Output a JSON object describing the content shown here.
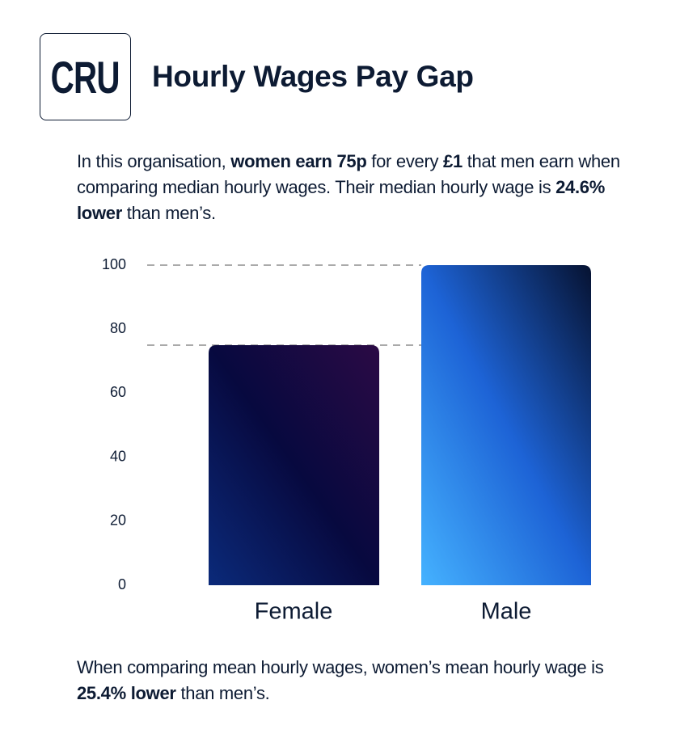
{
  "logo": "CRU",
  "title": "Hourly Wages Pay Gap",
  "intro": [
    {
      "text": "In this organisation, ",
      "bold": false
    },
    {
      "text": "women earn 75p",
      "bold": true
    },
    {
      "text": " for every ",
      "bold": false
    },
    {
      "text": "£1",
      "bold": true
    },
    {
      "text": " that men earn when comparing median hourly wages. Their median hourly wage is ",
      "bold": false
    },
    {
      "text": "24.6% lower",
      "bold": true
    },
    {
      "text": " than men’s.",
      "bold": false
    }
  ],
  "chart_data": {
    "type": "bar",
    "categories": [
      "Female",
      "Male"
    ],
    "values": [
      75,
      100
    ],
    "colors": [
      [
        "#2b0a45",
        "#07093f",
        "#0b2a7a"
      ],
      [
        "#061231",
        "#1d63d6",
        "#45b2ff"
      ]
    ],
    "ylim": [
      0,
      100
    ],
    "yticks": [
      0,
      20,
      40,
      60,
      80,
      100
    ],
    "reference_lines": true
  },
  "footnote": [
    {
      "text": "When comparing mean hourly wages, women’s mean hourly wage is ",
      "bold": false
    },
    {
      "text": "25.4% lower",
      "bold": true
    },
    {
      "text": " than men’s.",
      "bold": false
    }
  ]
}
